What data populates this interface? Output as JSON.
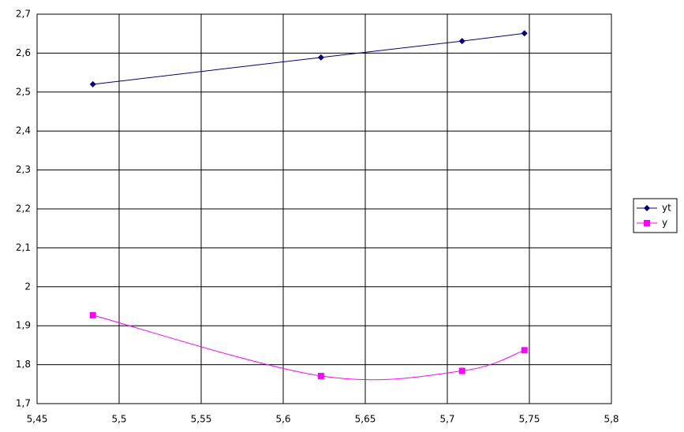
{
  "chart_data": {
    "type": "scatter",
    "series": [
      {
        "name": "yt",
        "color": "#000080",
        "marker": "diamond",
        "x": [
          5.484,
          5.623,
          5.709,
          5.747
        ],
        "values": [
          2.52,
          2.589,
          2.631,
          2.651
        ]
      },
      {
        "name": "y",
        "color": "#ff00ff",
        "marker": "square",
        "x": [
          5.484,
          5.623,
          5.709,
          5.747
        ],
        "values": [
          1.927,
          1.771,
          1.784,
          1.837
        ]
      }
    ],
    "xlim": [
      5.45,
      5.8
    ],
    "xticks": [
      {
        "value": 5.45,
        "label": "5,45"
      },
      {
        "value": 5.5,
        "label": "5,5"
      },
      {
        "value": 5.55,
        "label": "5,55"
      },
      {
        "value": 5.6,
        "label": "5,6"
      },
      {
        "value": 5.65,
        "label": "5,65"
      },
      {
        "value": 5.7,
        "label": "5,7"
      },
      {
        "value": 5.75,
        "label": "5,75"
      },
      {
        "value": 5.8,
        "label": "5,8"
      }
    ],
    "ylim": [
      1.7,
      2.7
    ],
    "yticks": [
      {
        "value": 1.7,
        "label": "1,7"
      },
      {
        "value": 1.8,
        "label": "1,8"
      },
      {
        "value": 1.9,
        "label": "1,9"
      },
      2,
      {
        "value": 2.1,
        "label": "2,1"
      },
      {
        "value": 2.2,
        "label": "2,2"
      },
      {
        "value": 2.3,
        "label": "2,3"
      },
      {
        "value": 2.4,
        "label": "2,4"
      },
      {
        "value": 2.5,
        "label": "2,5"
      },
      {
        "value": 2.6,
        "label": "2,6"
      },
      {
        "value": 2.7,
        "label": "2,7"
      }
    ],
    "grid": true,
    "smooth": true,
    "legend": "right"
  }
}
